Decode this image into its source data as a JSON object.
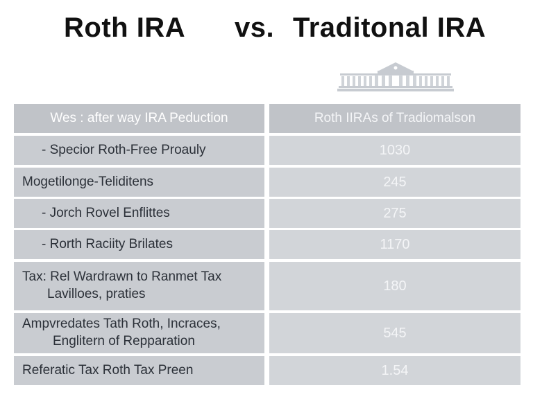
{
  "title": {
    "left": "Roth IRA",
    "vs": "vs.",
    "right": "Traditonal IRA"
  },
  "icons": {
    "building": "government-building-icon"
  },
  "colors": {
    "cell_left": "#c9ccd1",
    "cell_right": "#d2d5d9",
    "header": "#c0c3c8",
    "title": "#111111"
  },
  "table": {
    "headers": [
      "Wes : after way IRA Peduction",
      "Roth IIRAs of Tradiomalson"
    ],
    "rows": [
      {
        "label": "- Specior Roth-Free Proauly",
        "value": "1030"
      },
      {
        "label": "Mogetilonge-Teliditens",
        "value": "245"
      },
      {
        "label": "- Jorch Rovel Enflittes",
        "value": "275"
      },
      {
        "label": "- Rorth Raciity Brilates",
        "value": "1170"
      },
      {
        "label_line1": "Tax: Rel Wardrawn to Ranmet Tax",
        "label_line2": "Lavilloes, praties",
        "value": "180"
      },
      {
        "label_line1": "Ampvredates Tath Roth, Incraces,",
        "label_line2": "Englitern of Repparation",
        "value": "545"
      },
      {
        "label": "Referatic Tax Roth Tax Preen",
        "value": "1.54"
      }
    ]
  }
}
